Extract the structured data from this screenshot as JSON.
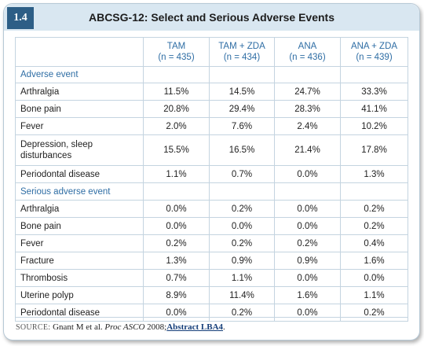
{
  "slide": {
    "number": "1.4",
    "title": "ABCSG-12: Select and Serious Adverse Events"
  },
  "table": {
    "columns": [
      {
        "name": "TAM",
        "n": "(n = 435)"
      },
      {
        "name": "TAM + ZDA",
        "n": "(n = 434)"
      },
      {
        "name": "ANA",
        "n": "(n = 436)"
      },
      {
        "name": "ANA + ZDA",
        "n": "(n = 439)"
      }
    ],
    "section1": "Adverse event",
    "adverse": [
      {
        "label": "Arthralgia",
        "values": [
          "11.5%",
          "14.5%",
          "24.7%",
          "33.3%"
        ]
      },
      {
        "label": "Bone pain",
        "values": [
          "20.8%",
          "29.4%",
          "28.3%",
          "41.1%"
        ]
      },
      {
        "label": "Fever",
        "values": [
          "2.0%",
          "7.6%",
          "2.4%",
          "10.2%"
        ]
      },
      {
        "label": "Depression, sleep disturbances",
        "label1": "Depression, sleep",
        "label2": "disturbances",
        "values": [
          "15.5%",
          "16.5%",
          "21.4%",
          "17.8%"
        ]
      },
      {
        "label": "Periodontal disease",
        "values": [
          "1.1%",
          "0.7%",
          "0.0%",
          "1.3%"
        ]
      }
    ],
    "section2": "Serious adverse event",
    "serious": [
      {
        "label": "Arthralgia",
        "values": [
          "0.0%",
          "0.2%",
          "0.0%",
          "0.2%"
        ]
      },
      {
        "label": "Bone pain",
        "values": [
          "0.0%",
          "0.0%",
          "0.0%",
          "0.2%"
        ]
      },
      {
        "label": "Fever",
        "values": [
          "0.2%",
          "0.2%",
          "0.2%",
          "0.4%"
        ]
      },
      {
        "label": "Fracture",
        "values": [
          "1.3%",
          "0.9%",
          "0.9%",
          "1.6%"
        ]
      },
      {
        "label": "Thrombosis",
        "values": [
          "0.7%",
          "1.1%",
          "0.0%",
          "0.0%"
        ]
      },
      {
        "label": "Uterine polyp",
        "values": [
          "8.9%",
          "11.4%",
          "1.6%",
          "1.1%"
        ]
      },
      {
        "label": "Periodontal disease",
        "values": [
          "0.0%",
          "0.2%",
          "0.0%",
          "0.2%"
        ]
      }
    ]
  },
  "source": {
    "label": "SOURCE:",
    "citation": "Gnant M et al.",
    "journal": "Proc ASCO",
    "year": "2008;",
    "link": "Abstract LBA4",
    "end": "."
  },
  "colors": {
    "header_bg": "#d9e7f1",
    "badge_bg": "#2d5e86",
    "accent_text": "#2e6da4",
    "grid": "#c4d4e0"
  }
}
